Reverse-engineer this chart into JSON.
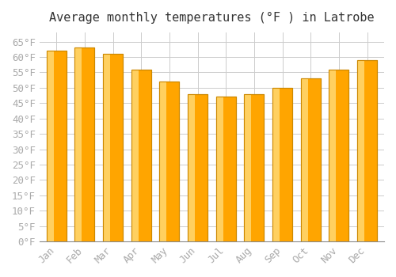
{
  "title": "Average monthly temperatures (°F ) in Latrobe",
  "months": [
    "Jan",
    "Feb",
    "Mar",
    "Apr",
    "May",
    "Jun",
    "Jul",
    "Aug",
    "Sep",
    "Oct",
    "Nov",
    "Dec"
  ],
  "values": [
    62,
    63,
    61,
    56,
    52,
    48,
    47,
    48,
    50,
    53,
    56,
    59
  ],
  "bar_color": "#FFA500",
  "bar_edge_color": "#CC8800",
  "background_color": "#FFFFFF",
  "grid_color": "#CCCCCC",
  "ylim": [
    0,
    68
  ],
  "ytick_step": 5,
  "title_fontsize": 11,
  "tick_fontsize": 9,
  "tick_label_color": "#AAAAAA",
  "font_family": "monospace"
}
